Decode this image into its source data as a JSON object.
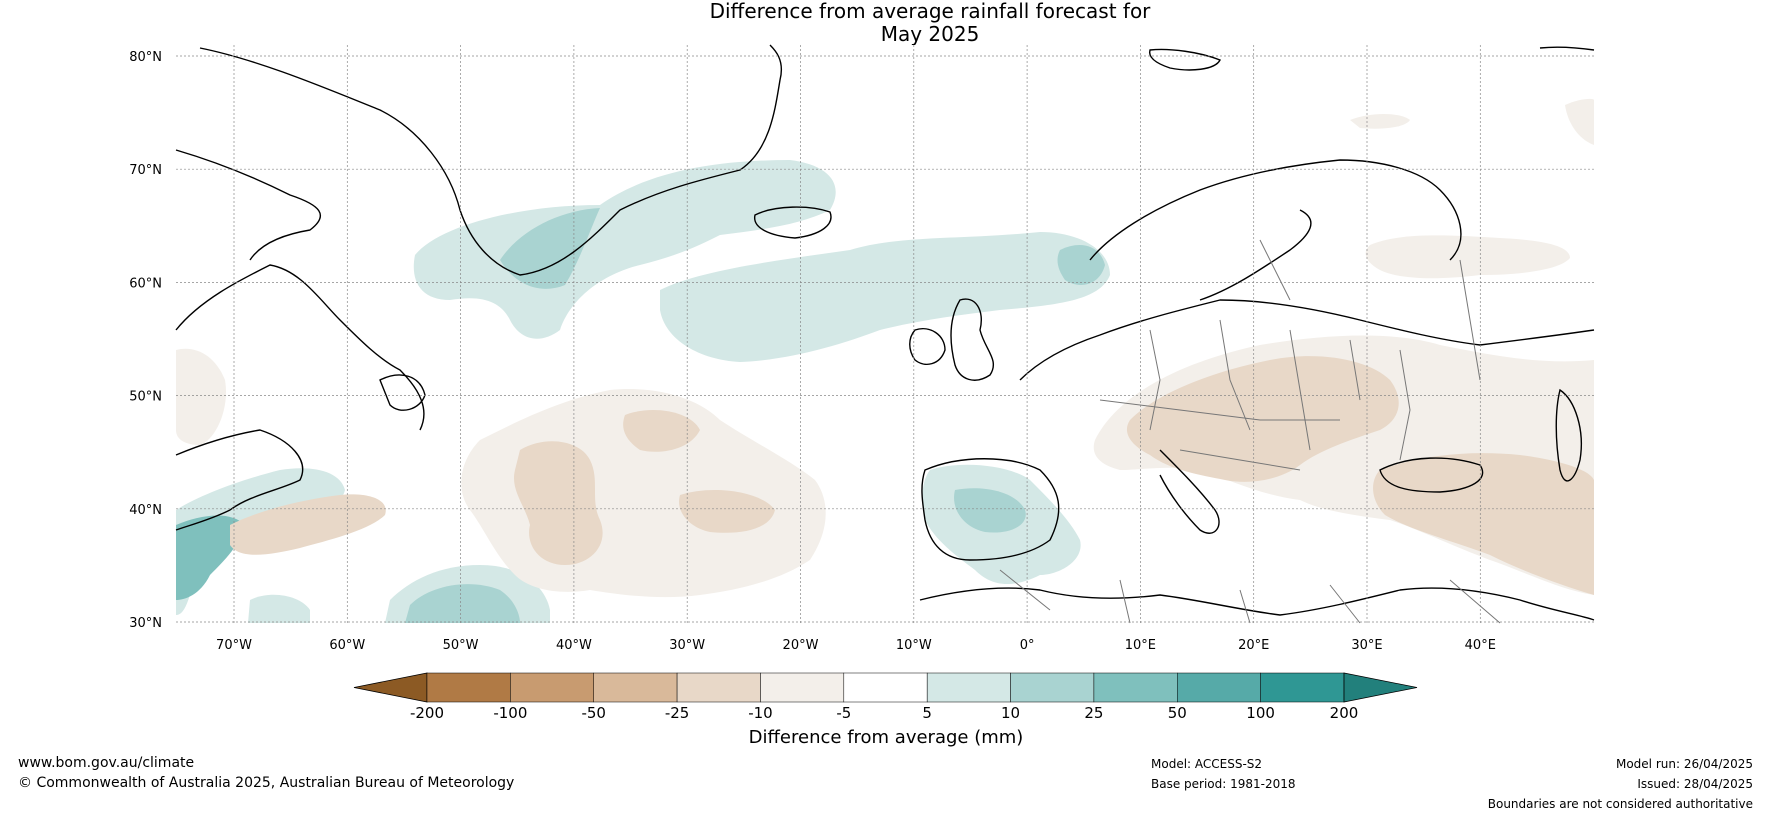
{
  "title_line1": "Difference from average rainfall forecast for",
  "title_line2": "May 2025",
  "lat_labels": [
    "80°N",
    "70°N",
    "60°N",
    "50°N",
    "40°N",
    "30°N"
  ],
  "lon_labels": [
    "70°W",
    "60°W",
    "50°W",
    "40°W",
    "30°W",
    "20°W",
    "10°W",
    "0°",
    "10°E",
    "20°E",
    "30°E",
    "40°E"
  ],
  "colorbar": {
    "ticks": [
      "-200",
      "-100",
      "-50",
      "-25",
      "-10",
      "-5",
      "5",
      "10",
      "25",
      "50",
      "100",
      "200"
    ],
    "colors": [
      "#8c5a24",
      "#b07a45",
      "#c89b70",
      "#d9b99a",
      "#e8d8c8",
      "#f3efea",
      "#ffffff",
      "#d4e8e6",
      "#a9d3d1",
      "#7fc0bd",
      "#56aaa8",
      "#2f9794",
      "#22807c"
    ],
    "label": "Difference from average (mm)"
  },
  "footer": {
    "url": "www.bom.gov.au/climate",
    "copyright": "© Commonwealth of Australia 2025, Australian Bureau of Meteorology",
    "model": "Model: ACCESS-S2",
    "base_period": "Base period: 1981-2018",
    "model_run": "Model run: 26/04/2025",
    "issued": "Issued: 28/04/2025",
    "boundaries": "Boundaries are not considered authoritative"
  }
}
